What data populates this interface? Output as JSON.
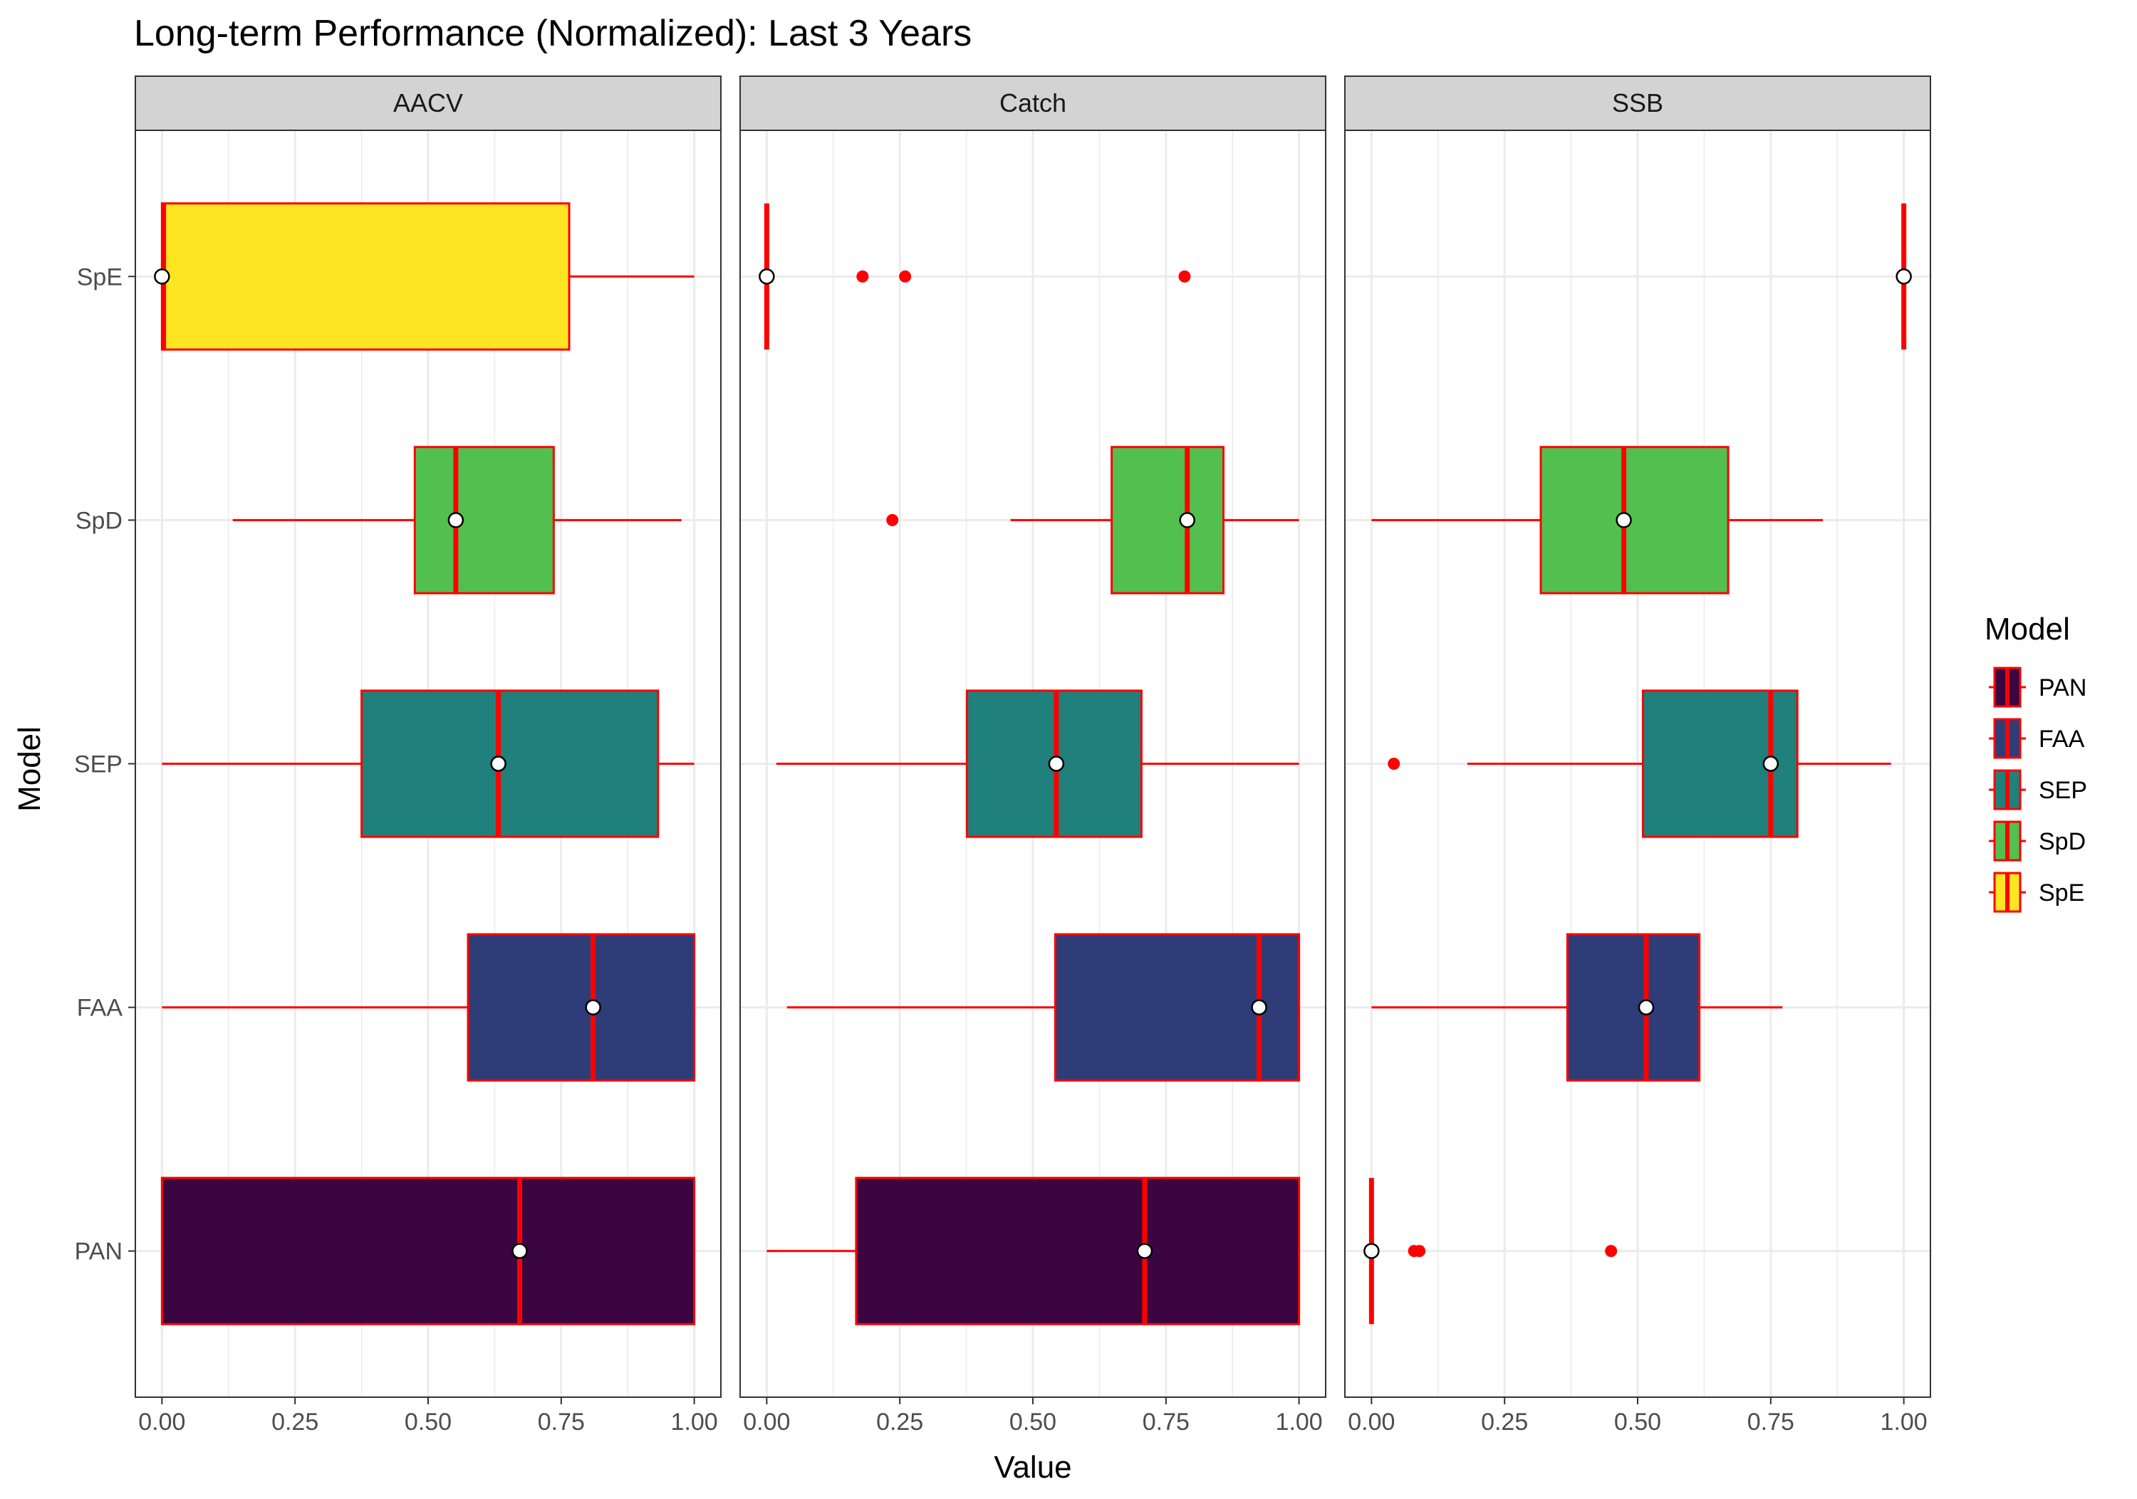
{
  "chart_data": {
    "type": "boxplot",
    "title": "Long-term Performance (Normalized): Last 3 Years",
    "xlabel": "Value",
    "ylabel": "Model",
    "xlim": [
      0,
      1
    ],
    "x_ticks": [
      "0.00",
      "0.25",
      "0.50",
      "0.75",
      "1.00"
    ],
    "x_tick_values": [
      0,
      0.25,
      0.5,
      0.75,
      1.0
    ],
    "categories": [
      "PAN",
      "FAA",
      "SEP",
      "SpD",
      "SpE"
    ],
    "grid": true,
    "legend": {
      "title": "Model",
      "placement": "right",
      "entries": [
        "PAN",
        "FAA",
        "SEP",
        "SpD",
        "SpE"
      ]
    },
    "colors": {
      "PAN": "#3a0540",
      "FAA": "#2e3d77",
      "SEP": "#20807b",
      "SpD": "#52c04f",
      "SpE": "#fde522",
      "box_border": "#ff0000",
      "median": "#ff0000",
      "whisker": "#ff0000",
      "outlier": "#ff0000",
      "mean_fill": "#ffffff",
      "mean_border": "#000000",
      "strip_bg": "#d3d3d3",
      "grid": "#ebebeb"
    },
    "panels": [
      {
        "name": "AACV",
        "boxes": [
          {
            "model": "PAN",
            "whisker_low": 0.0,
            "q1": 0.0,
            "median": 0.672,
            "q3": 1.0,
            "whisker_high": 1.0,
            "mean": 0.672,
            "outliers": []
          },
          {
            "model": "FAA",
            "whisker_low": 0.0,
            "q1": 0.575,
            "median": 0.81,
            "q3": 1.0,
            "whisker_high": 1.0,
            "mean": 0.81,
            "outliers": []
          },
          {
            "model": "SEP",
            "whisker_low": 0.0,
            "q1": 0.375,
            "median": 0.632,
            "q3": 0.932,
            "whisker_high": 1.0,
            "mean": 0.632,
            "outliers": []
          },
          {
            "model": "SpD",
            "whisker_low": 0.133,
            "q1": 0.475,
            "median": 0.552,
            "q3": 0.736,
            "whisker_high": 0.976,
            "mean": 0.552,
            "outliers": []
          },
          {
            "model": "SpE",
            "whisker_low": 0.0,
            "q1": 0.0,
            "median": 0.003,
            "q3": 0.765,
            "whisker_high": 1.0,
            "mean": 0.0,
            "outliers": []
          }
        ]
      },
      {
        "name": "Catch",
        "boxes": [
          {
            "model": "PAN",
            "whisker_low": 0.0,
            "q1": 0.168,
            "median": 0.71,
            "q3": 1.0,
            "whisker_high": 1.0,
            "mean": 0.71,
            "outliers": []
          },
          {
            "model": "FAA",
            "whisker_low": 0.038,
            "q1": 0.542,
            "median": 0.925,
            "q3": 1.0,
            "whisker_high": 1.0,
            "mean": 0.925,
            "outliers": []
          },
          {
            "model": "SEP",
            "whisker_low": 0.018,
            "q1": 0.376,
            "median": 0.544,
            "q3": 0.704,
            "whisker_high": 1.0,
            "mean": 0.544,
            "outliers": []
          },
          {
            "model": "SpD",
            "whisker_low": 0.458,
            "q1": 0.648,
            "median": 0.79,
            "q3": 0.858,
            "whisker_high": 1.0,
            "mean": 0.79,
            "outliers": [
              0.236
            ]
          },
          {
            "model": "SpE",
            "whisker_low": 0.0,
            "q1": 0.0,
            "median": 0.0,
            "q3": 0.0,
            "whisker_high": 0.0,
            "mean": 0.0,
            "outliers": [
              0.18,
              0.26,
              0.785
            ]
          }
        ]
      },
      {
        "name": "SSB",
        "boxes": [
          {
            "model": "PAN",
            "whisker_low": 0.0,
            "q1": 0.0,
            "median": 0.0,
            "q3": 0.0,
            "whisker_high": 0.0,
            "mean": 0.0,
            "outliers": [
              0.08,
              0.09,
              0.45
            ]
          },
          {
            "model": "FAA",
            "whisker_low": 0.0,
            "q1": 0.368,
            "median": 0.516,
            "q3": 0.616,
            "whisker_high": 0.772,
            "mean": 0.516,
            "outliers": []
          },
          {
            "model": "SEP",
            "whisker_low": 0.18,
            "q1": 0.51,
            "median": 0.75,
            "q3": 0.8,
            "whisker_high": 0.976,
            "mean": 0.75,
            "outliers": [
              0.042
            ]
          },
          {
            "model": "SpD",
            "whisker_low": 0.0,
            "q1": 0.318,
            "median": 0.474,
            "q3": 0.67,
            "whisker_high": 0.848,
            "mean": 0.474,
            "outliers": []
          },
          {
            "model": "SpE",
            "whisker_low": 1.0,
            "q1": 1.0,
            "median": 1.0,
            "q3": 1.0,
            "whisker_high": 1.0,
            "mean": 1.0,
            "outliers": []
          }
        ]
      }
    ]
  }
}
